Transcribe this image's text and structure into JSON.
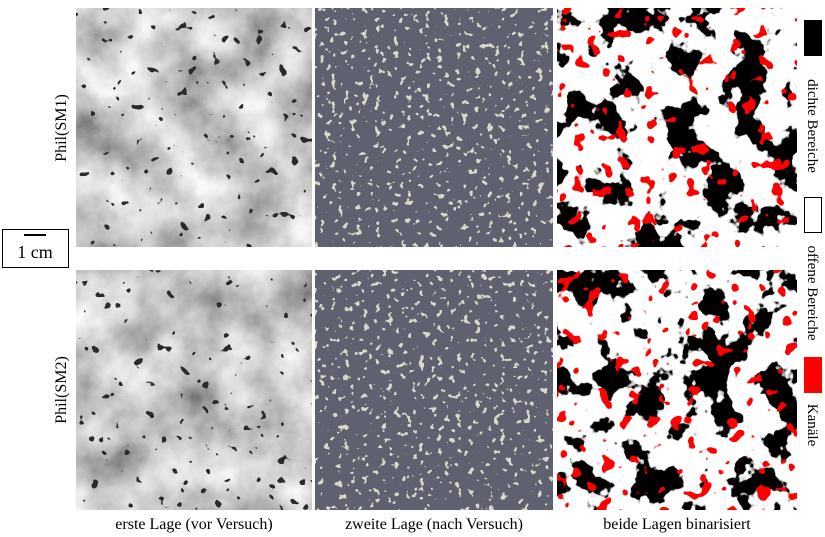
{
  "rows": [
    {
      "label": "Phil(SM1)"
    },
    {
      "label": "Phil(SM2)"
    }
  ],
  "columns": [
    {
      "label": "erste Lage (vor Versuch)"
    },
    {
      "label": "zweite Lage (nach Versuch)"
    },
    {
      "label": "beide Lagen binarisiert"
    }
  ],
  "scale_bar": {
    "label": "1 cm"
  },
  "legend": [
    {
      "label": "dichte Bereiche"
    },
    {
      "label": "offene Bereiche"
    },
    {
      "label": "Kanäle"
    }
  ]
}
